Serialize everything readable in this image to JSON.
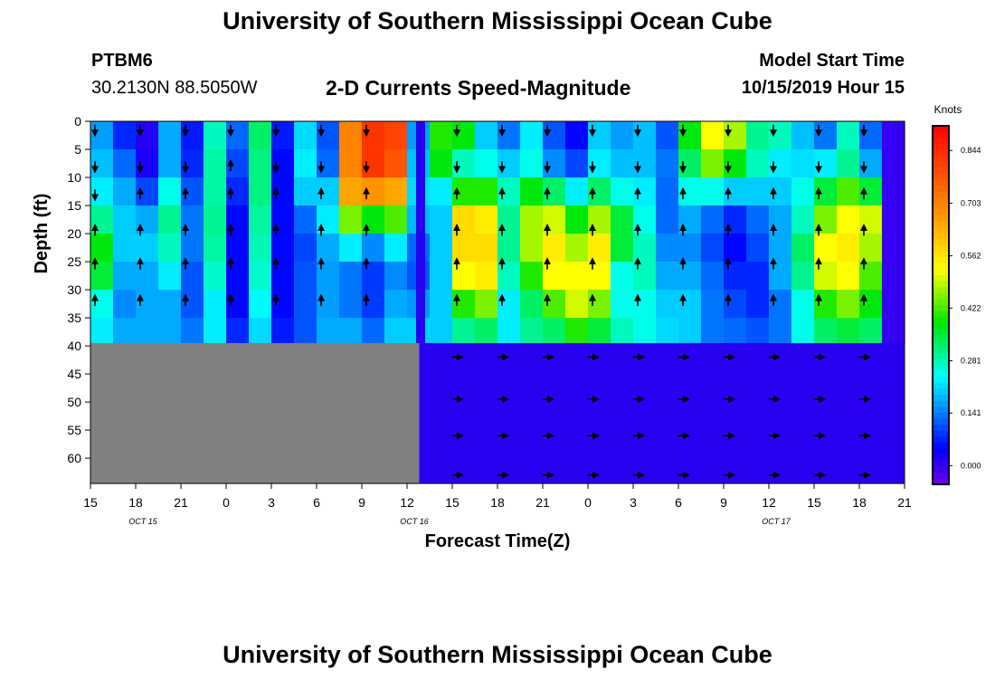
{
  "page": {
    "title_top": "University of Southern Mississippi Ocean Cube",
    "title_bottom": "University of Southern Mississippi Ocean Cube",
    "station_id": "PTBM6",
    "station_coords": "30.2130N 88.5050W",
    "center_title": "2-D Currents Speed-Magnitude",
    "model_label": "Model Start Time",
    "model_time": "10/15/2019 Hour 15"
  },
  "chart_data": {
    "type": "heatmap",
    "title": "2-D Currents Speed-Magnitude",
    "xlabel": "Forecast Time(Z)",
    "ylabel": "Depth (ft)",
    "x_ticks": [
      "15",
      "18",
      "21",
      "0",
      "3",
      "6",
      "9",
      "12",
      "15",
      "18",
      "21",
      "0",
      "3",
      "6",
      "9",
      "12",
      "15",
      "18",
      "21"
    ],
    "x_range_hours": [
      0,
      54
    ],
    "date_labels": [
      {
        "label": "OCT 15",
        "hour": 3
      },
      {
        "label": "OCT 16",
        "hour": 21
      },
      {
        "label": "OCT 17",
        "hour": 45
      }
    ],
    "y_ticks": [
      0,
      5,
      10,
      15,
      20,
      25,
      30,
      35,
      40,
      45,
      50,
      55,
      60
    ],
    "ylim": [
      0,
      64.5
    ],
    "y_inverted": true,
    "data_depth_max": 39.5,
    "nodata_region_gray": {
      "x_hours": [
        0,
        21.8
      ],
      "depth": [
        39.5,
        64.5
      ],
      "color": "#808080"
    },
    "fill_region_blue": {
      "x_hours": [
        21.8,
        54
      ],
      "depth": [
        39.5,
        64.5
      ],
      "color": "#2a00f0"
    },
    "gap_column_hours": [
      21.6,
      22.2
    ],
    "colorbar": {
      "label": "Knots",
      "ticks": [
        "0.844",
        "0.703",
        "0.562",
        "0.422",
        "0.281",
        "0.141",
        "0.000"
      ],
      "tick_values": [
        0.844,
        0.703,
        0.562,
        0.422,
        0.281,
        0.141,
        0.0
      ],
      "range": [
        -0.05,
        0.91
      ]
    },
    "grid_hours": [
      0,
      1.5,
      3,
      4.5,
      6,
      7.5,
      9,
      10.5,
      12,
      13.5,
      15,
      16.5,
      18,
      19.5,
      21,
      22.5,
      24,
      25.5,
      27,
      28.5,
      30,
      31.5,
      33,
      34.5,
      36,
      37.5,
      39,
      40.5,
      42,
      43.5,
      45,
      46.5,
      48,
      49.5,
      51,
      52.5
    ],
    "grid_depths": [
      0,
      5,
      10,
      15,
      20,
      25,
      30,
      35,
      39.5
    ],
    "speed_knots": [
      [
        0.15,
        0.05,
        0.03,
        0.2,
        0.08,
        0.25,
        0.15,
        0.35,
        0.08,
        0.22,
        0.12,
        0.7,
        0.8,
        0.8,
        0.15,
        0.3,
        0.45,
        0.2,
        0.12,
        0.25,
        0.12,
        0.05,
        0.2,
        0.15,
        0.2,
        0.1,
        0.4,
        0.5,
        0.5,
        0.3,
        0.3,
        0.2,
        0.12,
        0.3,
        0.1,
        0.0
      ],
      [
        0.18,
        0.1,
        0.0,
        0.15,
        0.05,
        0.3,
        0.1,
        0.3,
        0.05,
        0.2,
        0.1,
        0.7,
        0.85,
        0.8,
        0.18,
        0.5,
        0.3,
        0.2,
        0.15,
        0.2,
        0.1,
        0.05,
        0.2,
        0.18,
        0.18,
        0.12,
        0.35,
        0.55,
        0.45,
        0.3,
        0.25,
        0.18,
        0.15,
        0.25,
        0.15,
        0.0
      ],
      [
        0.2,
        0.15,
        0.05,
        0.2,
        0.1,
        0.28,
        0.1,
        0.32,
        0.05,
        0.25,
        0.15,
        0.7,
        0.8,
        0.75,
        0.2,
        0.25,
        0.25,
        0.3,
        0.25,
        0.3,
        0.2,
        0.15,
        0.25,
        0.2,
        0.2,
        0.15,
        0.3,
        0.35,
        0.3,
        0.25,
        0.2,
        0.25,
        0.3,
        0.35,
        0.2,
        0.0
      ],
      [
        0.25,
        0.2,
        0.15,
        0.3,
        0.12,
        0.3,
        0.05,
        0.3,
        0.05,
        0.15,
        0.25,
        0.6,
        0.55,
        0.55,
        0.22,
        0.2,
        0.55,
        0.5,
        0.3,
        0.45,
        0.45,
        0.3,
        0.4,
        0.3,
        0.25,
        0.1,
        0.2,
        0.15,
        0.1,
        0.15,
        0.2,
        0.25,
        0.4,
        0.5,
        0.5,
        0.0
      ],
      [
        0.35,
        0.2,
        0.2,
        0.3,
        0.15,
        0.3,
        0.05,
        0.28,
        0.05,
        0.1,
        0.2,
        0.3,
        0.2,
        0.3,
        0.15,
        0.2,
        0.6,
        0.6,
        0.3,
        0.5,
        0.55,
        0.45,
        0.55,
        0.4,
        0.25,
        0.15,
        0.15,
        0.1,
        0.05,
        0.1,
        0.15,
        0.3,
        0.5,
        0.55,
        0.5,
        0.0
      ],
      [
        0.4,
        0.2,
        0.2,
        0.25,
        0.12,
        0.28,
        0.05,
        0.28,
        0.05,
        0.1,
        0.15,
        0.15,
        0.1,
        0.15,
        0.1,
        0.2,
        0.55,
        0.55,
        0.3,
        0.45,
        0.55,
        0.5,
        0.55,
        0.3,
        0.3,
        0.15,
        0.15,
        0.1,
        0.05,
        0.1,
        0.2,
        0.35,
        0.55,
        0.55,
        0.45,
        0.0
      ],
      [
        0.3,
        0.15,
        0.15,
        0.2,
        0.1,
        0.25,
        0.05,
        0.25,
        0.05,
        0.12,
        0.18,
        0.12,
        0.08,
        0.15,
        0.12,
        0.2,
        0.5,
        0.55,
        0.25,
        0.35,
        0.5,
        0.55,
        0.5,
        0.2,
        0.25,
        0.2,
        0.2,
        0.15,
        0.1,
        0.05,
        0.15,
        0.25,
        0.45,
        0.5,
        0.4,
        0.0
      ],
      [
        0.2,
        0.15,
        0.2,
        0.15,
        0.12,
        0.2,
        0.05,
        0.22,
        0.05,
        0.1,
        0.15,
        0.15,
        0.1,
        0.2,
        0.2,
        0.2,
        0.3,
        0.35,
        0.2,
        0.3,
        0.35,
        0.45,
        0.4,
        0.3,
        0.25,
        0.2,
        0.2,
        0.12,
        0.1,
        0.1,
        0.12,
        0.25,
        0.35,
        0.4,
        0.35,
        0.0
      ],
      [
        0.25,
        0.2,
        0.15,
        0.2,
        0.15,
        0.25,
        0.1,
        0.2,
        0.08,
        0.12,
        0.2,
        0.2,
        0.15,
        0.2,
        0.2,
        0.2,
        0.3,
        0.3,
        0.25,
        0.3,
        0.3,
        0.35,
        0.3,
        0.25,
        0.25,
        0.22,
        0.2,
        0.15,
        0.15,
        0.12,
        0.15,
        0.25,
        0.3,
        0.3,
        0.3,
        0.0
      ]
    ],
    "arrows_dir_deg": [
      [
        null,
        135,
        null,
        135,
        null,
        null,
        null,
        null,
        null,
        null,
        null,
        135,
        null,
        180,
        null,
        135,
        null,
        180,
        null,
        135,
        null,
        180,
        null,
        null,
        null,
        270,
        null,
        null,
        null,
        225,
        null,
        225,
        null,
        null,
        null,
        null
      ],
      [
        180,
        null,
        null,
        225,
        null,
        null,
        0,
        null,
        null,
        0,
        null,
        135,
        null,
        180,
        null,
        180,
        null,
        60,
        null,
        45,
        null,
        0,
        null,
        60,
        null,
        270,
        null,
        60,
        null,
        225,
        null,
        null,
        null,
        225,
        null,
        null
      ],
      [
        null,
        0,
        null,
        315,
        null,
        0,
        null,
        0,
        null,
        null,
        null,
        135,
        null,
        180,
        null,
        null,
        null,
        null,
        null,
        null,
        null,
        null,
        null,
        null,
        null,
        null,
        null,
        null,
        null,
        null,
        null,
        null,
        null,
        null,
        null,
        null
      ],
      [
        0,
        null,
        null,
        null,
        null,
        null,
        null,
        null,
        null,
        null,
        null,
        null,
        null,
        null,
        null,
        null,
        null,
        null,
        null,
        null,
        null,
        null,
        null,
        null,
        null,
        null,
        null,
        null,
        null,
        null,
        null,
        null,
        null,
        null,
        null,
        null
      ]
    ],
    "series_note_unused": ""
  }
}
